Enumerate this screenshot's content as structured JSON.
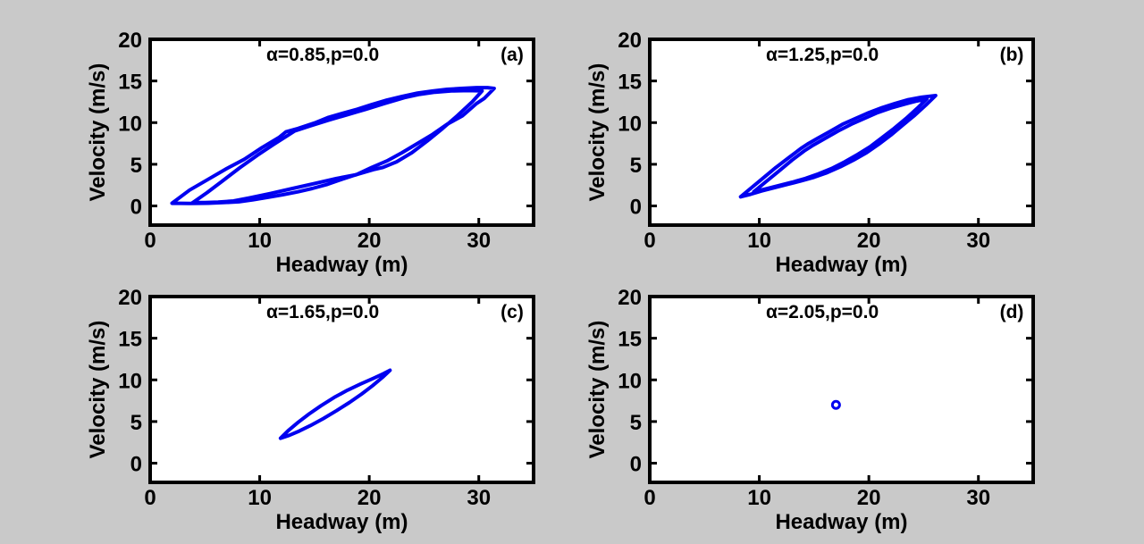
{
  "figure": {
    "background_color": "#c9c9c9",
    "plot_background_color": "#ffffff",
    "frame_color": "#000000",
    "line_color": "#0000f0",
    "marker_color": "#0000f0"
  },
  "chart_data": [
    {
      "type": "line",
      "panel_id": "a",
      "panel_letter": "(a)",
      "title": "α=0.85,p=0.0",
      "xlabel": "Headway (m)",
      "ylabel": "Velocity (m/s)",
      "xlim": [
        0,
        35
      ],
      "ylim": [
        -2.3,
        20
      ],
      "xticks": [
        0,
        10,
        20,
        30
      ],
      "yticks": [
        0,
        5,
        10,
        15,
        20
      ],
      "grid": false,
      "legend": "none",
      "series": [
        {
          "name": "outer-hysteresis-loop",
          "points": [
            [
              2.0,
              0.33
            ],
            [
              3.6,
              1.9
            ],
            [
              5.3,
              3.2
            ],
            [
              7.0,
              4.5
            ],
            [
              8.6,
              5.6
            ],
            [
              10.2,
              7.0
            ],
            [
              11.8,
              8.25
            ],
            [
              12.4,
              8.9
            ],
            [
              13.5,
              9.3
            ],
            [
              15.0,
              9.95
            ],
            [
              16.2,
              10.6
            ],
            [
              17.5,
              11.1
            ],
            [
              18.9,
              11.6
            ],
            [
              20.2,
              12.15
            ],
            [
              21.6,
              12.7
            ],
            [
              23.0,
              13.15
            ],
            [
              24.4,
              13.55
            ],
            [
              25.8,
              13.8
            ],
            [
              27.1,
              14.0
            ],
            [
              28.4,
              14.1
            ],
            [
              29.8,
              14.2
            ],
            [
              30.8,
              14.2
            ],
            [
              31.4,
              14.1
            ],
            [
              30.5,
              12.9
            ],
            [
              29.8,
              12.3
            ],
            [
              28.5,
              10.8
            ],
            [
              27.1,
              9.8
            ],
            [
              25.8,
              8.6
            ],
            [
              24.4,
              7.5
            ],
            [
              23.0,
              6.4
            ],
            [
              21.6,
              5.4
            ],
            [
              20.2,
              4.6
            ],
            [
              18.9,
              3.8
            ],
            [
              17.5,
              3.2
            ],
            [
              16.2,
              2.6
            ],
            [
              14.8,
              2.1
            ],
            [
              13.5,
              1.7
            ],
            [
              12.1,
              1.35
            ],
            [
              10.8,
              1.05
            ],
            [
              9.4,
              0.75
            ],
            [
              8.1,
              0.5
            ],
            [
              6.7,
              0.4
            ],
            [
              5.3,
              0.33
            ],
            [
              3.6,
              0.3
            ],
            [
              2.0,
              0.33
            ]
          ]
        },
        {
          "name": "inner-hysteresis-loop",
          "points": [
            [
              3.9,
              0.4
            ],
            [
              5.2,
              1.6
            ],
            [
              6.6,
              3.0
            ],
            [
              8.2,
              4.6
            ],
            [
              9.8,
              6.1
            ],
            [
              11.3,
              7.4
            ],
            [
              12.6,
              8.5
            ],
            [
              13.2,
              9.0
            ],
            [
              14.6,
              9.6
            ],
            [
              16.3,
              10.3
            ],
            [
              18.0,
              10.95
            ],
            [
              19.7,
              11.6
            ],
            [
              21.4,
              12.3
            ],
            [
              23.2,
              13.0
            ],
            [
              24.6,
              13.4
            ],
            [
              26.0,
              13.65
            ],
            [
              27.5,
              13.8
            ],
            [
              29.0,
              13.85
            ],
            [
              30.3,
              13.8
            ],
            [
              29.4,
              12.5
            ],
            [
              28.1,
              10.9
            ],
            [
              26.7,
              9.3
            ],
            [
              25.3,
              7.8
            ],
            [
              23.9,
              6.4
            ],
            [
              22.5,
              5.3
            ],
            [
              21.2,
              4.6
            ],
            [
              20.5,
              4.4
            ],
            [
              18.8,
              3.75
            ],
            [
              17.0,
              3.3
            ],
            [
              15.0,
              2.7
            ],
            [
              13.0,
              2.1
            ],
            [
              11.0,
              1.5
            ],
            [
              9.0,
              0.95
            ],
            [
              7.6,
              0.6
            ],
            [
              6.2,
              0.45
            ],
            [
              5.0,
              0.4
            ],
            [
              3.9,
              0.4
            ]
          ]
        }
      ]
    },
    {
      "type": "line",
      "panel_id": "b",
      "panel_letter": "(b)",
      "title": "α=1.25,p=0.0",
      "xlabel": "Headway (m)",
      "ylabel": "Velocity (m/s)",
      "xlim": [
        0,
        35
      ],
      "ylim": [
        -2.3,
        20
      ],
      "xticks": [
        0,
        10,
        20,
        30
      ],
      "yticks": [
        0,
        5,
        10,
        15,
        20
      ],
      "grid": false,
      "legend": "none",
      "series": [
        {
          "name": "outer-hysteresis-loop",
          "points": [
            [
              8.3,
              1.1
            ],
            [
              9.3,
              2.2
            ],
            [
              10.4,
              3.4
            ],
            [
              11.5,
              4.6
            ],
            [
              12.7,
              5.8
            ],
            [
              13.8,
              6.9
            ],
            [
              14.5,
              7.5
            ],
            [
              15.3,
              8.1
            ],
            [
              16.4,
              8.9
            ],
            [
              17.6,
              9.8
            ],
            [
              18.8,
              10.5
            ],
            [
              20.0,
              11.2
            ],
            [
              21.2,
              11.8
            ],
            [
              22.4,
              12.3
            ],
            [
              23.6,
              12.75
            ],
            [
              24.8,
              13.05
            ],
            [
              26.1,
              13.25
            ],
            [
              25.2,
              12.1
            ],
            [
              24.2,
              10.9
            ],
            [
              23.1,
              9.7
            ],
            [
              22.0,
              8.5
            ],
            [
              20.9,
              7.4
            ],
            [
              19.8,
              6.4
            ],
            [
              18.6,
              5.5
            ],
            [
              17.4,
              4.7
            ],
            [
              16.2,
              4.0
            ],
            [
              15.0,
              3.45
            ],
            [
              13.8,
              3.0
            ],
            [
              12.6,
              2.6
            ],
            [
              11.4,
              2.2
            ],
            [
              10.2,
              1.8
            ],
            [
              9.2,
              1.4
            ],
            [
              8.3,
              1.1
            ]
          ]
        },
        {
          "name": "inner-hysteresis-loop",
          "points": [
            [
              9.5,
              1.7
            ],
            [
              10.6,
              2.9
            ],
            [
              11.8,
              4.2
            ],
            [
              13.0,
              5.5
            ],
            [
              14.1,
              6.6
            ],
            [
              14.8,
              7.2
            ],
            [
              16.0,
              8.1
            ],
            [
              17.2,
              9.0
            ],
            [
              18.4,
              9.8
            ],
            [
              19.6,
              10.5
            ],
            [
              20.8,
              11.2
            ],
            [
              22.0,
              11.75
            ],
            [
              23.2,
              12.2
            ],
            [
              24.4,
              12.6
            ],
            [
              25.3,
              12.85
            ],
            [
              24.4,
              11.7
            ],
            [
              23.4,
              10.5
            ],
            [
              22.3,
              9.3
            ],
            [
              21.2,
              8.2
            ],
            [
              20.1,
              7.1
            ],
            [
              19.0,
              6.2
            ],
            [
              17.8,
              5.3
            ],
            [
              16.6,
              4.5
            ],
            [
              15.4,
              3.85
            ],
            [
              14.2,
              3.3
            ],
            [
              13.0,
              2.85
            ],
            [
              11.8,
              2.45
            ],
            [
              10.6,
              2.05
            ],
            [
              9.5,
              1.7
            ]
          ]
        }
      ]
    },
    {
      "type": "line",
      "panel_id": "c",
      "panel_letter": "(c)",
      "title": "α=1.65,p=0.0",
      "xlabel": "Headway (m)",
      "ylabel": "Velocity (m/s)",
      "xlim": [
        0,
        35
      ],
      "ylim": [
        -2.3,
        20
      ],
      "xticks": [
        0,
        10,
        20,
        30
      ],
      "yticks": [
        0,
        5,
        10,
        15,
        20
      ],
      "grid": false,
      "legend": "none",
      "series": [
        {
          "name": "hysteresis-loop",
          "points": [
            [
              11.9,
              3.0
            ],
            [
              12.6,
              3.9
            ],
            [
              13.5,
              4.9
            ],
            [
              14.5,
              5.9
            ],
            [
              15.6,
              6.9
            ],
            [
              16.8,
              7.9
            ],
            [
              18.0,
              8.75
            ],
            [
              19.2,
              9.5
            ],
            [
              20.4,
              10.2
            ],
            [
              21.3,
              10.75
            ],
            [
              21.9,
              11.15
            ],
            [
              21.2,
              10.3
            ],
            [
              20.3,
              9.3
            ],
            [
              19.3,
              8.3
            ],
            [
              18.2,
              7.3
            ],
            [
              17.0,
              6.3
            ],
            [
              15.8,
              5.35
            ],
            [
              14.6,
              4.5
            ],
            [
              13.6,
              3.85
            ],
            [
              12.7,
              3.35
            ],
            [
              11.9,
              3.0
            ]
          ]
        }
      ]
    },
    {
      "type": "scatter",
      "panel_id": "d",
      "panel_letter": "(d)",
      "title": "α=2.05,p=0.0",
      "xlabel": "Headway (m)",
      "ylabel": "Velocity (m/s)",
      "xlim": [
        0,
        35
      ],
      "ylim": [
        -2.3,
        20
      ],
      "xticks": [
        0,
        10,
        20,
        30
      ],
      "yticks": [
        0,
        5,
        10,
        15,
        20
      ],
      "grid": false,
      "legend": "none",
      "series": [
        {
          "name": "stable-fixed-point-marker",
          "marker": "circle",
          "points": [
            [
              17.0,
              7.0
            ]
          ]
        }
      ]
    }
  ]
}
